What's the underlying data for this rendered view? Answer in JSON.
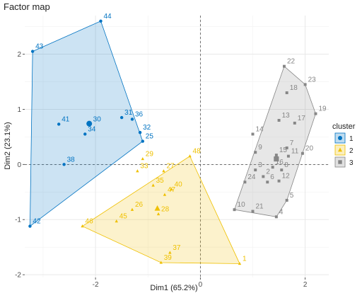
{
  "chart_data": {
    "type": "scatter",
    "title": "Factor map",
    "xlabel": "Dim1 (65.2%)",
    "ylabel": "Dim2 (23.1%)",
    "xlim": [
      -3.35,
      2.45
    ],
    "ylim": [
      -2.05,
      2.7
    ],
    "xticks": [
      -2,
      0,
      2
    ],
    "yticks": [
      -2,
      -1,
      0,
      1,
      2
    ],
    "grid": true,
    "legend": {
      "title": "cluster",
      "position": "right"
    },
    "series": [
      {
        "name": "1",
        "color": "#0073C2",
        "shape": "circle",
        "hull": [
          43,
          44,
          25,
          42
        ],
        "center": [
          -2.12,
          0.74
        ],
        "points": [
          {
            "label": "44",
            "x": -1.9,
            "y": 2.6
          },
          {
            "label": "43",
            "x": -3.2,
            "y": 2.05
          },
          {
            "label": "41",
            "x": -2.7,
            "y": 0.73
          },
          {
            "label": "31",
            "x": -1.5,
            "y": 0.85
          },
          {
            "label": "36",
            "x": -1.3,
            "y": 0.82
          },
          {
            "label": "30",
            "x": -2.1,
            "y": 0.73
          },
          {
            "label": "32",
            "x": -1.15,
            "y": 0.58
          },
          {
            "label": "34",
            "x": -2.2,
            "y": 0.55
          },
          {
            "label": "25",
            "x": -1.1,
            "y": 0.42
          },
          {
            "label": "38",
            "x": -2.6,
            "y": 0.0
          },
          {
            "label": "42",
            "x": -3.25,
            "y": -1.12
          }
        ]
      },
      {
        "name": "2",
        "color": "#EFC000",
        "shape": "triangle",
        "hull": [
          48,
          1,
          39,
          46
        ],
        "center": [
          -0.82,
          -0.8
        ],
        "points": [
          {
            "label": "29",
            "x": -1.1,
            "y": 0.1
          },
          {
            "label": "48",
            "x": -0.2,
            "y": 0.15
          },
          {
            "label": "33",
            "x": -1.2,
            "y": -0.12
          },
          {
            "label": "27",
            "x": -0.7,
            "y": -0.12
          },
          {
            "label": "35",
            "x": -0.9,
            "y": -0.38
          },
          {
            "label": "40",
            "x": -0.55,
            "y": -0.45
          },
          {
            "label": "47",
            "x": -0.68,
            "y": -0.55
          },
          {
            "label": "26",
            "x": -1.3,
            "y": -0.82
          },
          {
            "label": "28",
            "x": -0.8,
            "y": -0.9
          },
          {
            "label": "46",
            "x": -2.25,
            "y": -1.12
          },
          {
            "label": "45",
            "x": -1.6,
            "y": -1.03
          },
          {
            "label": "37",
            "x": -0.58,
            "y": -1.6
          },
          {
            "label": "39",
            "x": -0.75,
            "y": -1.78
          },
          {
            "label": "1",
            "x": 0.75,
            "y": -1.8
          }
        ]
      },
      {
        "name": "3",
        "color": "#868686",
        "shape": "square",
        "hull": [
          22,
          23,
          19,
          5,
          4,
          10
        ],
        "center": [
          1.45,
          0.1
        ],
        "points": [
          {
            "label": "22",
            "x": 1.6,
            "y": 1.78
          },
          {
            "label": "23",
            "x": 2.0,
            "y": 1.45
          },
          {
            "label": "18",
            "x": 1.65,
            "y": 1.3
          },
          {
            "label": "19",
            "x": 2.2,
            "y": 0.92
          },
          {
            "label": "13",
            "x": 1.5,
            "y": 0.8
          },
          {
            "label": "17",
            "x": 1.8,
            "y": 0.75
          },
          {
            "label": "14",
            "x": 1.0,
            "y": 0.55
          },
          {
            "label": "9",
            "x": 1.05,
            "y": 0.22
          },
          {
            "label": "15",
            "x": 1.45,
            "y": 0.17
          },
          {
            "label": "7",
            "x": 1.65,
            "y": 0.3
          },
          {
            "label": "11",
            "x": 1.68,
            "y": 0.15
          },
          {
            "label": "20",
            "x": 1.95,
            "y": 0.2
          },
          {
            "label": "3",
            "x": 1.05,
            "y": -0.1
          },
          {
            "label": "16",
            "x": 1.38,
            "y": -0.05
          },
          {
            "label": "8",
            "x": 1.55,
            "y": -0.1
          },
          {
            "label": "2",
            "x": 1.2,
            "y": -0.22
          },
          {
            "label": "24",
            "x": 0.85,
            "y": -0.32
          },
          {
            "label": "6",
            "x": 1.28,
            "y": -0.32
          },
          {
            "label": "12",
            "x": 1.5,
            "y": -0.3
          },
          {
            "label": "5",
            "x": 1.65,
            "y": -0.65
          },
          {
            "label": "10",
            "x": 0.65,
            "y": -0.82
          },
          {
            "label": "21",
            "x": 1.0,
            "y": -0.85
          },
          {
            "label": "4",
            "x": 1.45,
            "y": -0.95
          }
        ]
      }
    ]
  }
}
